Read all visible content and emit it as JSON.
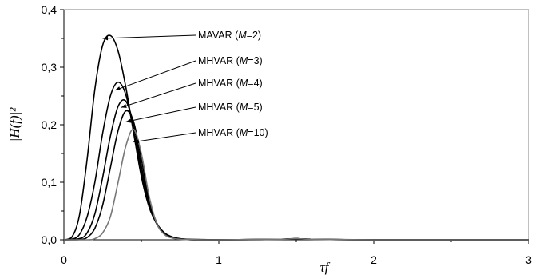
{
  "chart_data": {
    "type": "line",
    "title": "",
    "xlabel": "τf",
    "ylabel": "|H(f)|²",
    "xlim": [
      0,
      3
    ],
    "ylim": [
      0,
      0.4
    ],
    "x_ticks": [
      "0",
      "1",
      "2",
      "3"
    ],
    "y_ticks": [
      "0,0",
      "0,1",
      "0,2",
      "0,3",
      "0,4"
    ],
    "grid": false,
    "legend": "none",
    "series": [
      {
        "label": "MAVAR (M=2)",
        "label_parts": [
          "MAVAR (",
          "M",
          "=2)"
        ],
        "color": "#000000",
        "pointer_at": [
          0.25,
          0.35
        ],
        "x": [
          0,
          0.05,
          0.1,
          0.15,
          0.2,
          0.25,
          0.3,
          0.35,
          0.4,
          0.45,
          0.5,
          0.55,
          0.6,
          0.65,
          0.7,
          0.75,
          0.8,
          0.9,
          1.0,
          1.2,
          1.4,
          1.5,
          1.6,
          2.0,
          2.5,
          3.0
        ],
        "y": [
          0,
          0.004,
          0.042,
          0.14,
          0.262,
          0.338,
          0.355,
          0.328,
          0.265,
          0.186,
          0.11,
          0.057,
          0.028,
          0.012,
          0.005,
          0.002,
          0.001,
          0.0005,
          0,
          0,
          0.001,
          0.002,
          0.001,
          0,
          0,
          0
        ]
      },
      {
        "label": "MHVAR (M=3)",
        "label_parts": [
          "MHVAR (",
          "M",
          "=3)"
        ],
        "color": "#000000",
        "pointer_at": [
          0.33,
          0.26
        ],
        "x": [
          0,
          0.05,
          0.1,
          0.15,
          0.2,
          0.25,
          0.3,
          0.35,
          0.4,
          0.45,
          0.5,
          0.55,
          0.6,
          0.65,
          0.7,
          0.75,
          0.8,
          0.9,
          1.0,
          1.4,
          1.5,
          1.6,
          2.0,
          3.0
        ],
        "y": [
          0,
          0.001,
          0.009,
          0.04,
          0.1,
          0.185,
          0.25,
          0.274,
          0.252,
          0.19,
          0.118,
          0.06,
          0.027,
          0.011,
          0.004,
          0.0015,
          0.0005,
          0,
          0,
          0.001,
          0.002,
          0.001,
          0,
          0
        ]
      },
      {
        "label": "MHVAR (M=4)",
        "label_parts": [
          "MHVAR (",
          "M",
          "=4)"
        ],
        "color": "#000000",
        "pointer_at": [
          0.37,
          0.23
        ],
        "x": [
          0,
          0.1,
          0.15,
          0.2,
          0.25,
          0.3,
          0.35,
          0.4,
          0.45,
          0.5,
          0.55,
          0.6,
          0.65,
          0.7,
          0.75,
          0.8,
          0.9,
          1.0,
          1.4,
          1.5,
          1.6,
          2.0,
          3.0
        ],
        "y": [
          0,
          0.002,
          0.012,
          0.045,
          0.108,
          0.18,
          0.232,
          0.241,
          0.2,
          0.128,
          0.065,
          0.028,
          0.011,
          0.004,
          0.0015,
          0.0005,
          0,
          0,
          0.001,
          0.002,
          0.001,
          0,
          0
        ]
      },
      {
        "label": "MHVAR (M=5)",
        "label_parts": [
          "MHVAR (",
          "M",
          "=5)"
        ],
        "color": "#000000",
        "pointer_at": [
          0.4,
          0.205
        ],
        "x": [
          0,
          0.1,
          0.15,
          0.2,
          0.25,
          0.3,
          0.35,
          0.4,
          0.45,
          0.5,
          0.55,
          0.6,
          0.65,
          0.7,
          0.75,
          0.8,
          0.9,
          1.0,
          1.4,
          1.5,
          1.6,
          2.0,
          3.0
        ],
        "y": [
          0,
          0.0005,
          0.004,
          0.02,
          0.06,
          0.125,
          0.19,
          0.224,
          0.205,
          0.14,
          0.071,
          0.029,
          0.011,
          0.004,
          0.0015,
          0.0005,
          0,
          0,
          0.001,
          0.002,
          0.001,
          0,
          0
        ]
      },
      {
        "label": "MHVAR (M=10)",
        "label_parts": [
          "MHVAR (",
          "M",
          "=10)"
        ],
        "color": "#777777",
        "pointer_at": [
          0.45,
          0.17
        ],
        "x": [
          0,
          0.15,
          0.2,
          0.25,
          0.3,
          0.35,
          0.4,
          0.45,
          0.5,
          0.55,
          0.6,
          0.65,
          0.7,
          0.75,
          0.8,
          0.9,
          1.0,
          1.4,
          1.5,
          1.6,
          2.0,
          3.0
        ],
        "y": [
          0,
          0,
          0.002,
          0.012,
          0.04,
          0.1,
          0.163,
          0.192,
          0.15,
          0.076,
          0.028,
          0.009,
          0.003,
          0.001,
          0.0004,
          0,
          0,
          0.001,
          0.002,
          0.001,
          0,
          0
        ]
      }
    ]
  }
}
